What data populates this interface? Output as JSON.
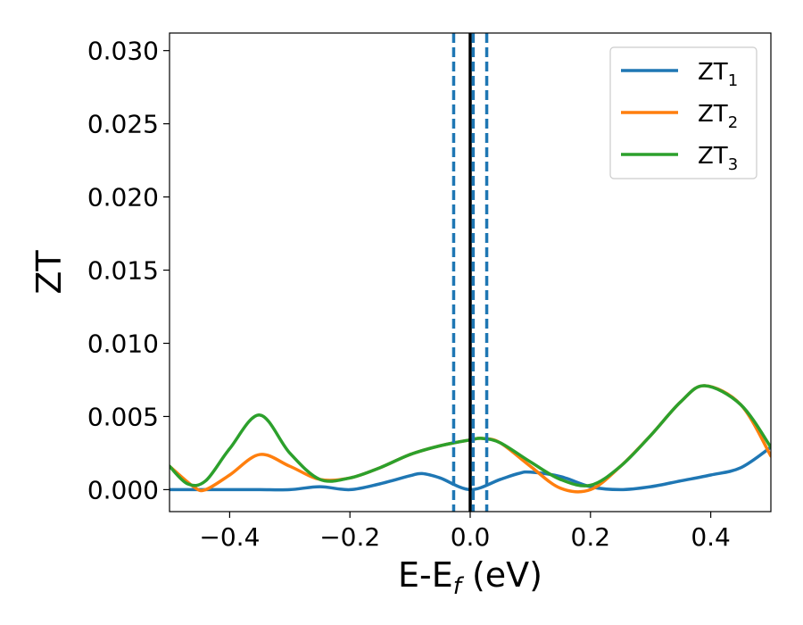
{
  "chart_data": {
    "type": "line",
    "xlabel": "E-E",
    "xlabel_sub": "f",
    "xlabel_unit": " (eV)",
    "ylabel": "ZT",
    "xlim": [
      -0.5,
      0.5
    ],
    "ylim": [
      -0.0015,
      0.0312
    ],
    "xticks": [
      {
        "value": -0.4,
        "label": "−0.4"
      },
      {
        "value": -0.2,
        "label": "−0.2"
      },
      {
        "value": 0.0,
        "label": "0.0"
      },
      {
        "value": 0.2,
        "label": "0.2"
      },
      {
        "value": 0.4,
        "label": "0.4"
      }
    ],
    "yticks": [
      {
        "value": 0.0,
        "label": "0.000"
      },
      {
        "value": 0.005,
        "label": "0.005"
      },
      {
        "value": 0.01,
        "label": "0.010"
      },
      {
        "value": 0.015,
        "label": "0.015"
      },
      {
        "value": 0.02,
        "label": "0.020"
      },
      {
        "value": 0.025,
        "label": "0.025"
      },
      {
        "value": 0.03,
        "label": "0.030"
      }
    ],
    "grid": false,
    "legend_position": "top-right",
    "series": [
      {
        "name": "ZT",
        "sub": "1",
        "color": "#1f77b4",
        "x": [
          -0.5,
          -0.45,
          -0.4,
          -0.35,
          -0.3,
          -0.25,
          -0.2,
          -0.15,
          -0.1,
          -0.08,
          -0.05,
          0.0,
          0.05,
          0.08,
          0.1,
          0.15,
          0.2,
          0.25,
          0.3,
          0.35,
          0.4,
          0.45,
          0.5
        ],
        "y": [
          0.0,
          0.0,
          0.0,
          0.0,
          0.0,
          0.0002,
          0.0,
          0.0004,
          0.00095,
          0.0011,
          0.0008,
          0.0,
          0.0007,
          0.0011,
          0.0012,
          0.0009,
          0.0002,
          0.0,
          0.0002,
          0.0006,
          0.001,
          0.0015,
          0.0029
        ]
      },
      {
        "name": "ZT",
        "sub": "2",
        "color": "#ff7f0e",
        "x": [
          -0.5,
          -0.46,
          -0.44,
          -0.4,
          -0.35,
          -0.3,
          -0.25,
          -0.2,
          -0.15,
          -0.1,
          -0.05,
          0.0,
          0.02,
          0.05,
          0.1,
          0.15,
          0.2,
          0.25,
          0.3,
          0.35,
          0.39,
          0.45,
          0.5
        ],
        "y": [
          0.0016,
          0.0002,
          0.0,
          0.001,
          0.0024,
          0.0016,
          0.0007,
          0.0008,
          0.0015,
          0.0024,
          0.003,
          0.0034,
          0.0035,
          0.0032,
          0.0016,
          0.0001,
          0.0,
          0.0016,
          0.0037,
          0.006,
          0.0071,
          0.0058,
          0.0023
        ]
      },
      {
        "name": "ZT",
        "sub": "3",
        "color": "#2ca02c",
        "x": [
          -0.5,
          -0.47,
          -0.44,
          -0.4,
          -0.35,
          -0.3,
          -0.25,
          -0.2,
          -0.15,
          -0.1,
          -0.05,
          0.0,
          0.02,
          0.05,
          0.1,
          0.15,
          0.2,
          0.25,
          0.3,
          0.35,
          0.39,
          0.45,
          0.5
        ],
        "y": [
          0.0016,
          0.0004,
          0.0006,
          0.0028,
          0.0051,
          0.0025,
          0.0007,
          0.0008,
          0.0015,
          0.0024,
          0.003,
          0.0034,
          0.0035,
          0.0032,
          0.0019,
          0.0007,
          0.0003,
          0.0016,
          0.0037,
          0.006,
          0.0071,
          0.0058,
          0.0029
        ]
      }
    ],
    "vlines": [
      {
        "x": 0.0,
        "color": "#000000",
        "style": "solid"
      },
      {
        "x": -0.0275,
        "color": "#1f77b4",
        "style": "dashed"
      },
      {
        "x": 0.005,
        "color": "#1f77b4",
        "style": "dashed"
      },
      {
        "x": 0.0275,
        "color": "#1f77b4",
        "style": "dashed"
      }
    ]
  }
}
